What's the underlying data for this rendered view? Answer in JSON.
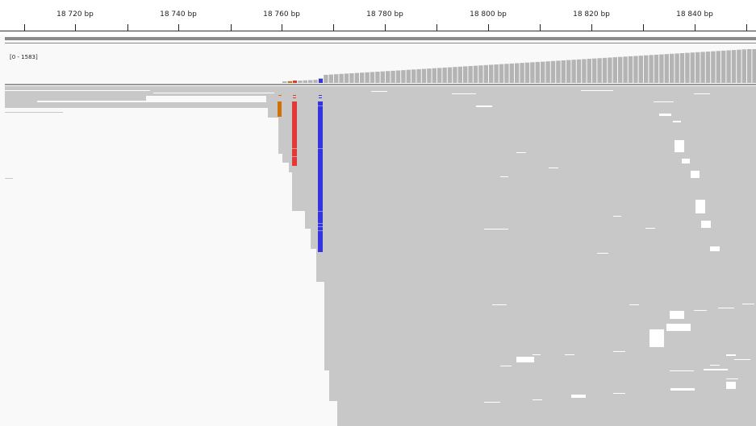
{
  "ruler": {
    "tick_labels": [
      "18 720 bp",
      "18 740 bp",
      "18 760 bp",
      "18 780 bp",
      "18 800 bp",
      "18 820 bp",
      "18 840 bp"
    ]
  },
  "coverage": {
    "range_label": "[0 - 1583]",
    "bar_color": "#b4b4b4"
  },
  "alignments": {
    "read_color": "#c8c8c8",
    "background_color": "#f9f9f9",
    "mismatch_colors": {
      "G": "#d17105",
      "T": "#e33838",
      "C": "#3333e0"
    }
  }
}
